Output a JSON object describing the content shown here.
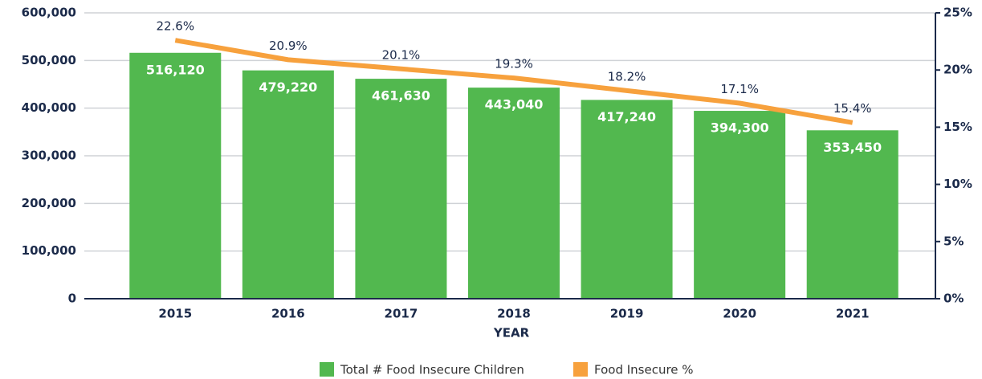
{
  "chart_data": {
    "type": "bar_line",
    "x_label": "YEAR",
    "categories": [
      "2015",
      "2016",
      "2017",
      "2018",
      "2019",
      "2020",
      "2021"
    ],
    "series": [
      {
        "name": "Total # Food Insecure Children",
        "color": "#52b84f",
        "type": "bar",
        "values": [
          516120,
          479220,
          461630,
          443040,
          417240,
          394300,
          353450
        ],
        "value_labels": [
          "516,120",
          "479,220",
          "461,630",
          "443,040",
          "417,240",
          "394,300",
          "353,450"
        ]
      },
      {
        "name": "Food Insecure %",
        "color": "#f7a13d",
        "type": "line",
        "axis": "y2",
        "values": [
          22.6,
          20.9,
          20.1,
          19.3,
          18.2,
          17.1,
          15.4
        ],
        "value_labels": [
          "22.6%",
          "20.9%",
          "20.1%",
          "19.3%",
          "18.2%",
          "17.1%",
          "15.4%"
        ]
      }
    ],
    "ylim": [
      0,
      600000
    ],
    "yticks": [
      {
        "value": 0,
        "label": "0"
      },
      {
        "value": 100000,
        "label": "100,000"
      },
      {
        "value": 200000,
        "label": "200,000"
      },
      {
        "value": 300000,
        "label": "300,000"
      },
      {
        "value": 400000,
        "label": "400,000"
      },
      {
        "value": 500000,
        "label": "500,000"
      },
      {
        "value": 600000,
        "label": "600,000"
      }
    ],
    "y2lim": [
      0,
      25
    ],
    "y2ticks": [
      {
        "value": 0,
        "label": "0%"
      },
      {
        "value": 5,
        "label": "5%"
      },
      {
        "value": 10,
        "label": "10%"
      },
      {
        "value": 15,
        "label": "15%"
      },
      {
        "value": 20,
        "label": "20%"
      },
      {
        "value": 25,
        "label": "25%"
      }
    ],
    "grid": true,
    "legend": "bottom"
  }
}
